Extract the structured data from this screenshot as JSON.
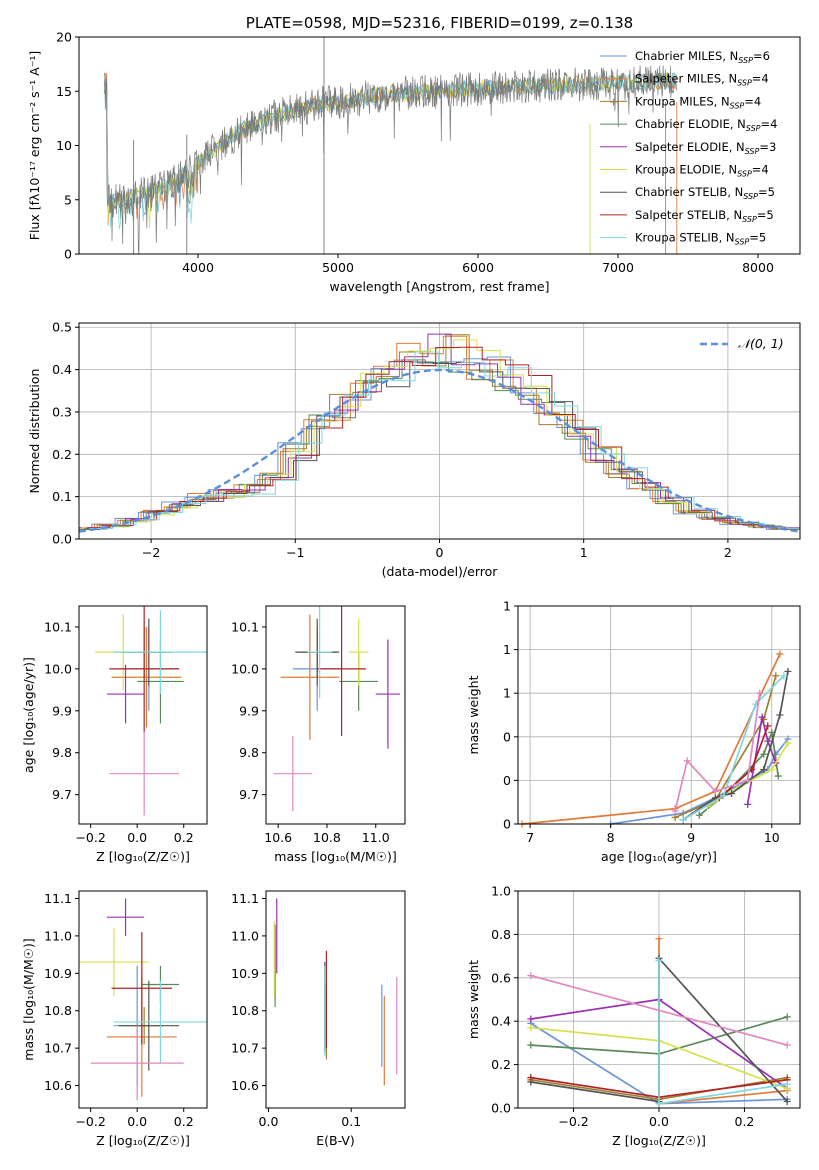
{
  "colors": {
    "series": [
      "#6a95d9",
      "#e07b39",
      "#a07f2e",
      "#5a8a5a",
      "#9b30b0",
      "#d6e04a",
      "#555555",
      "#b22222",
      "#7fd6e0"
    ],
    "pink": "#e088c0",
    "normal": "#5b8fdc",
    "spectrum": "#7a7a7a"
  },
  "chart_data": [
    {
      "type": "line",
      "title": "PLATE=0598, MJD=52316, FIBERID=0199, z=0.138",
      "xlabel": "wavelength [Angstrom, rest frame]",
      "ylabel": "Flux [fλ10⁻¹⁷ erg cm⁻² s⁻¹ A⁻¹]",
      "xlim": [
        3150,
        8300
      ],
      "ylim": [
        0,
        20
      ],
      "xticks": [
        4000,
        5000,
        6000,
        7000,
        8000
      ],
      "yticks": [
        0,
        5,
        10,
        15,
        20
      ],
      "legend_position": "top-right",
      "legend": [
        {
          "name": "Chabrier MILES, N",
          "sub": "SSP",
          "tail": "=6"
        },
        {
          "name": "Salpeter MILES, N",
          "sub": "SSP",
          "tail": "=4"
        },
        {
          "name": "Kroupa MILES, N",
          "sub": "SSP",
          "tail": "=4"
        },
        {
          "name": "Chabrier ELODIE, N",
          "sub": "SSP",
          "tail": "=4"
        },
        {
          "name": "Salpeter ELODIE, N",
          "sub": "SSP",
          "tail": "=3"
        },
        {
          "name": "Kroupa ELODIE, N",
          "sub": "SSP",
          "tail": "=4"
        },
        {
          "name": "Chabrier STELIB, N",
          "sub": "SSP",
          "tail": "=5"
        },
        {
          "name": "Salpeter STELIB, N",
          "sub": "SSP",
          "tail": "=5"
        },
        {
          "name": "Kroupa STELIB, N",
          "sub": "SSP",
          "tail": "=5"
        }
      ],
      "continuum": {
        "x": [
          3350,
          3500,
          3650,
          3800,
          3950,
          4100,
          4300,
          4500,
          4700,
          4900,
          5100,
          5300,
          5500,
          5800,
          6100,
          6400,
          6700,
          7000,
          7300,
          7420
        ],
        "y": [
          4.8,
          5.2,
          5.6,
          6.5,
          7.8,
          9.5,
          11.3,
          12.5,
          13.2,
          13.9,
          14.2,
          14.6,
          14.8,
          15.1,
          15.3,
          15.5,
          15.6,
          15.7,
          15.9,
          16.0
        ]
      }
    },
    {
      "type": "bar",
      "xlabel": "(data-model)/error",
      "ylabel": "Normed distribution",
      "xlim": [
        -2.5,
        2.5
      ],
      "ylim": [
        0,
        0.51
      ],
      "xticks": [
        -2,
        -1,
        0,
        1,
        2
      ],
      "yticks": [
        0.0,
        0.1,
        0.2,
        0.3,
        0.4,
        0.5
      ],
      "grid": true,
      "legend_position": "top-right",
      "normal_label": "𝒩(0, 1)",
      "histogram_template": [
        0.025,
        0.032,
        0.045,
        0.062,
        0.082,
        0.098,
        0.108,
        0.118,
        0.145,
        0.205,
        0.265,
        0.31,
        0.355,
        0.39,
        0.42,
        0.44,
        0.44,
        0.42,
        0.39,
        0.355,
        0.3,
        0.255,
        0.2,
        0.155,
        0.12,
        0.09,
        0.065,
        0.048,
        0.038,
        0.03,
        0.025
      ]
    },
    {
      "type": "scatter",
      "xlabel": "Z [log₁₀(Z/Z☉)]",
      "ylabel": "age  [log₁₀(age/yr)]",
      "xlim": [
        -0.25,
        0.3
      ],
      "ylim": [
        9.63,
        10.15
      ],
      "xticks": [
        -0.2,
        0.0,
        0.2
      ],
      "yticks": [
        9.7,
        9.8,
        9.9,
        10.0,
        10.1
      ],
      "points": [
        {
          "x": 0.05,
          "y": 10.0,
          "xerr": 0.13,
          "yerr": 0.1
        },
        {
          "x": 0.04,
          "y": 9.98,
          "xerr": 0.15,
          "yerr": 0.12
        },
        {
          "x": 0.03,
          "y": 10.04,
          "xerr": 0.1,
          "yerr": 0.06
        },
        {
          "x": 0.1,
          "y": 9.97,
          "xerr": 0.1,
          "yerr": 0.1
        },
        {
          "x": -0.05,
          "y": 9.94,
          "xerr": 0.08,
          "yerr": 0.07
        },
        {
          "x": -0.06,
          "y": 10.04,
          "xerr": 0.12,
          "yerr": 0.09
        },
        {
          "x": 0.05,
          "y": 10.04,
          "xerr": 0.1,
          "yerr": 0.08
        },
        {
          "x": 0.03,
          "y": 10.0,
          "xerr": 0.15,
          "yerr": 0.15
        },
        {
          "x": 0.1,
          "y": 10.04,
          "xerr": 0.2,
          "yerr": 0.1
        },
        {
          "x": 0.03,
          "y": 9.75,
          "xerr": 0.15,
          "yerr": 0.1
        }
      ]
    },
    {
      "type": "scatter",
      "xlabel": "mass [log₁₀(M/M☉)]",
      "ylabel": "",
      "xlim": [
        10.55,
        11.12
      ],
      "ylim": [
        9.63,
        10.15
      ],
      "xticks": [
        10.6,
        10.8,
        11.0
      ],
      "yticks": [
        9.7,
        9.8,
        9.9,
        10.0,
        10.1
      ],
      "points": [
        {
          "x": 10.76,
          "y": 10.0,
          "xerr": 0.1,
          "yerr": 0.1
        },
        {
          "x": 10.73,
          "y": 9.98,
          "xerr": 0.12,
          "yerr": 0.15
        },
        {
          "x": 10.76,
          "y": 10.04,
          "xerr": 0.08,
          "yerr": 0.06
        },
        {
          "x": 10.93,
          "y": 9.97,
          "xerr": 0.08,
          "yerr": 0.07
        },
        {
          "x": 11.05,
          "y": 9.94,
          "xerr": 0.05,
          "yerr": 0.13
        },
        {
          "x": 10.93,
          "y": 10.04,
          "xerr": 0.04,
          "yerr": 0.08
        },
        {
          "x": 10.76,
          "y": 10.04,
          "xerr": 0.09,
          "yerr": 0.08
        },
        {
          "x": 10.86,
          "y": 10.0,
          "xerr": 0.1,
          "yerr": 0.16
        },
        {
          "x": 10.77,
          "y": 10.04,
          "xerr": 0.05,
          "yerr": 0.11
        },
        {
          "x": 10.66,
          "y": 9.75,
          "xerr": 0.08,
          "yerr": 0.09
        }
      ]
    },
    {
      "type": "line",
      "xlabel": "age  [log₁₀(age/yr)]",
      "ylabel": "mass weight",
      "xlim": [
        6.85,
        10.35
      ],
      "ylim": [
        0,
        1.0
      ],
      "xticks": [
        7,
        8,
        9,
        10
      ],
      "yticks": [
        0.0,
        0.2,
        0.4,
        0.6,
        0.8,
        1.0
      ],
      "grid": true,
      "series": [
        {
          "x": [
            8.0,
            8.9,
            9.3,
            9.7,
            9.95,
            10.05,
            10.2
          ],
          "y": [
            0.0,
            0.05,
            0.12,
            0.2,
            0.25,
            0.32,
            0.39
          ]
        },
        {
          "x": [
            6.9,
            8.8,
            9.3,
            10.1
          ],
          "y": [
            0.0,
            0.07,
            0.15,
            0.78
          ]
        },
        {
          "x": [
            8.8,
            9.3,
            9.9,
            10.05
          ],
          "y": [
            0.03,
            0.11,
            0.48,
            0.68
          ]
        },
        {
          "x": [
            9.1,
            9.4,
            9.9,
            10.0,
            10.08
          ],
          "y": [
            0.04,
            0.13,
            0.32,
            0.42,
            0.22
          ]
        },
        {
          "x": [
            9.7,
            9.88,
            9.95,
            10.05
          ],
          "y": [
            0.09,
            0.49,
            0.38,
            0.28
          ]
        },
        {
          "x": [
            9.2,
            9.6,
            10.0,
            10.2
          ],
          "y": [
            0.08,
            0.17,
            0.25,
            0.37
          ]
        },
        {
          "x": [
            8.9,
            9.3,
            9.5,
            9.9,
            10.1,
            10.2
          ],
          "y": [
            0.02,
            0.12,
            0.14,
            0.25,
            0.5,
            0.7
          ]
        },
        {
          "x": [
            8.9,
            9.35,
            9.75,
            9.95
          ],
          "y": [
            0.02,
            0.12,
            0.25,
            0.45
          ]
        },
        {
          "x": [
            8.9,
            9.4,
            9.8,
            10.15
          ],
          "y": [
            0.02,
            0.13,
            0.55,
            0.68
          ]
        },
        {
          "x": [
            8.8,
            8.95,
            9.3,
            9.7,
            9.85
          ],
          "y": [
            0.06,
            0.29,
            0.15,
            0.2,
            0.6
          ]
        }
      ]
    },
    {
      "type": "scatter",
      "xlabel": "Z [log₁₀(Z/Z☉)]",
      "ylabel": "mass [log₁₀(M/M☉)]",
      "xlim": [
        -0.25,
        0.3
      ],
      "ylim": [
        10.54,
        11.12
      ],
      "xticks": [
        -0.2,
        0.0,
        0.2
      ],
      "yticks": [
        10.6,
        10.7,
        10.8,
        10.9,
        11.0,
        11.1
      ],
      "points": [
        {
          "x": 0.0,
          "y": 10.76,
          "xerr": 0.1,
          "yerr": 0.16
        },
        {
          "x": 0.02,
          "y": 10.73,
          "xerr": 0.15,
          "yerr": 0.16
        },
        {
          "x": 0.03,
          "y": 10.76,
          "xerr": 0.08,
          "yerr": 0.05
        },
        {
          "x": 0.1,
          "y": 10.87,
          "xerr": 0.08,
          "yerr": 0.05
        },
        {
          "x": -0.05,
          "y": 11.05,
          "xerr": 0.08,
          "yerr": 0.05
        },
        {
          "x": -0.1,
          "y": 10.93,
          "xerr": 0.15,
          "yerr": 0.09
        },
        {
          "x": 0.05,
          "y": 10.76,
          "xerr": 0.13,
          "yerr": 0.12
        },
        {
          "x": 0.02,
          "y": 10.86,
          "xerr": 0.13,
          "yerr": 0.15
        },
        {
          "x": 0.1,
          "y": 10.77,
          "xerr": 0.2,
          "yerr": 0.11
        },
        {
          "x": 0.0,
          "y": 10.66,
          "xerr": 0.2,
          "yerr": 0.1
        }
      ]
    },
    {
      "type": "scatter",
      "xlabel": "E(B-V)",
      "ylabel": "",
      "xlim": [
        -0.003,
        0.165
      ],
      "ylim": [
        10.54,
        11.12
      ],
      "xticks": [
        0.0,
        0.1
      ],
      "yticks": [
        10.6,
        10.7,
        10.8,
        10.9,
        11.0,
        11.1
      ],
      "points": [
        {
          "x": 0.137,
          "y": 10.76,
          "xerr": 0,
          "yerr": 0.11
        },
        {
          "x": 0.14,
          "y": 10.72,
          "xerr": 0,
          "yerr": 0.12
        },
        {
          "x": 0.07,
          "y": 10.77,
          "xerr": 0,
          "yerr": 0.1
        },
        {
          "x": 0.008,
          "y": 10.92,
          "xerr": 0,
          "yerr": 0.11
        },
        {
          "x": 0.01,
          "y": 11.0,
          "xerr": 0,
          "yerr": 0.1
        },
        {
          "x": 0.007,
          "y": 10.94,
          "xerr": 0,
          "yerr": 0.1
        },
        {
          "x": 0.068,
          "y": 10.81,
          "xerr": 0,
          "yerr": 0.12
        },
        {
          "x": 0.07,
          "y": 10.83,
          "xerr": 0,
          "yerr": 0.13
        },
        {
          "x": 0.068,
          "y": 10.8,
          "xerr": 0,
          "yerr": 0.12
        },
        {
          "x": 0.155,
          "y": 10.76,
          "xerr": 0,
          "yerr": 0.13
        }
      ]
    },
    {
      "type": "line",
      "xlabel": "Z [log₁₀(Z/Z☉)]",
      "ylabel": "mass weight",
      "xlim": [
        -0.33,
        0.33
      ],
      "ylim": [
        0,
        1.0
      ],
      "xticks": [
        -0.2,
        0.0,
        0.2
      ],
      "yticks": [
        0.0,
        0.2,
        0.4,
        0.6,
        0.8,
        1.0
      ],
      "grid": true,
      "series": [
        {
          "x": [
            -0.3,
            0.0,
            0.3
          ],
          "y": [
            0.39,
            0.02,
            0.04
          ]
        },
        {
          "x": [
            0.0,
            0.0,
            0.3
          ],
          "y": [
            0.78,
            0.02,
            0.08
          ]
        },
        {
          "x": [
            -0.3,
            0.0,
            0.3
          ],
          "y": [
            0.13,
            0.04,
            0.14
          ]
        },
        {
          "x": [
            -0.3,
            0.0,
            0.3
          ],
          "y": [
            0.29,
            0.25,
            0.42
          ]
        },
        {
          "x": [
            -0.3,
            0.0,
            0.3
          ],
          "y": [
            0.41,
            0.5,
            0.09
          ]
        },
        {
          "x": [
            -0.3,
            0.0,
            0.3
          ],
          "y": [
            0.37,
            0.31,
            0.09
          ]
        },
        {
          "x": [
            -0.3,
            0.0,
            0.0,
            0.3
          ],
          "y": [
            0.12,
            0.03,
            0.69,
            0.03
          ]
        },
        {
          "x": [
            -0.3,
            0.0,
            0.3
          ],
          "y": [
            0.14,
            0.05,
            0.13
          ]
        },
        {
          "x": [
            0.0,
            0.0,
            0.3
          ],
          "y": [
            0.68,
            0.02,
            0.11
          ]
        },
        {
          "x": [
            -0.3,
            0.3
          ],
          "y": [
            0.61,
            0.29
          ]
        }
      ]
    }
  ]
}
